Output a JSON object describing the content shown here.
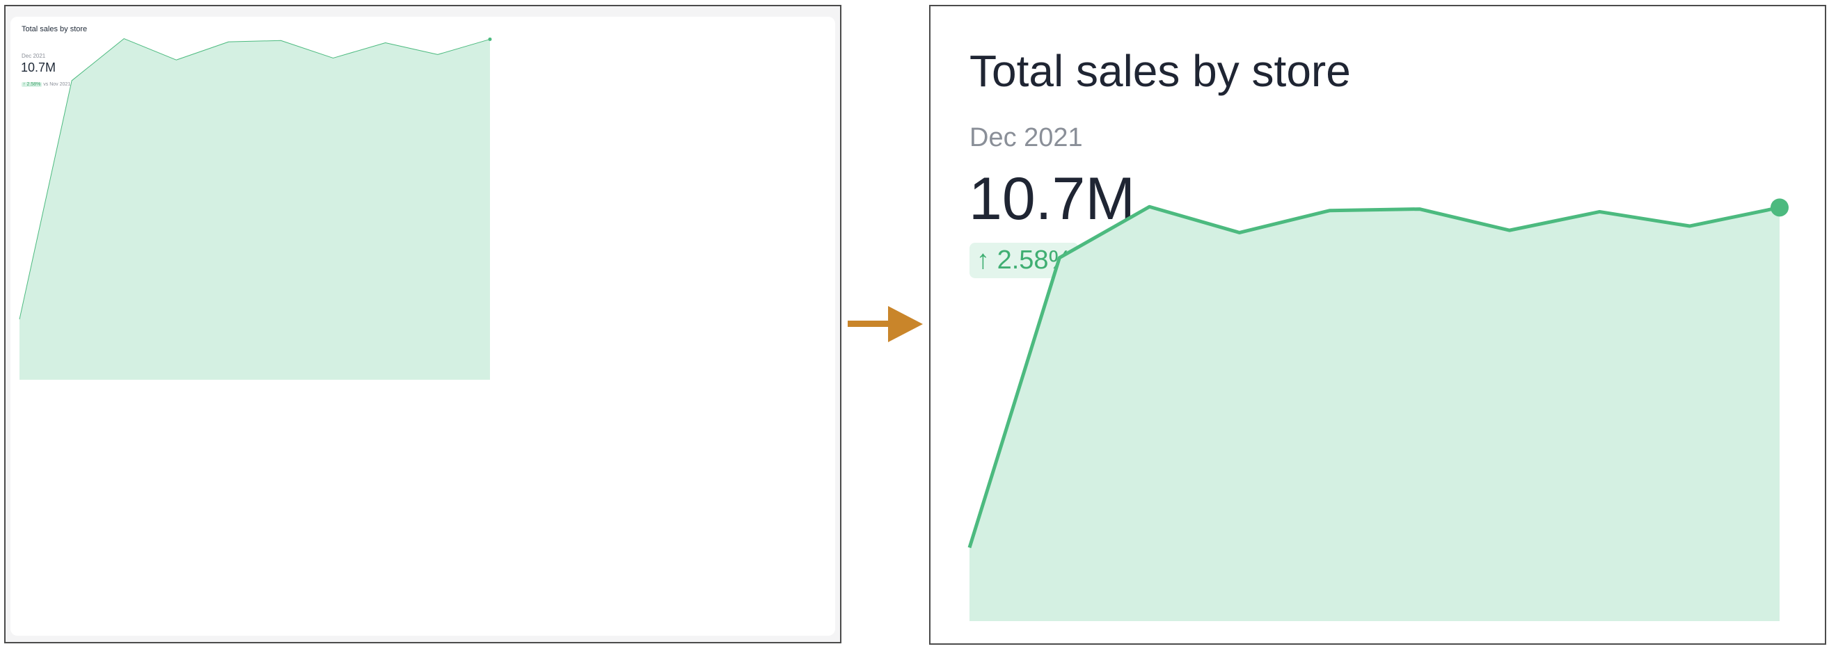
{
  "card": {
    "title": "Total sales by store",
    "period": "Dec 2021",
    "value": "10.7M",
    "change_arrow": "↑",
    "change_pct": "2.58%",
    "comparison": "vs Nov 2021 (10.43M)"
  },
  "colors": {
    "line": "#4cba7f",
    "fill": "#d4f0e2",
    "arrow": "#c9852a",
    "badge_bg": "#e3f5ec",
    "badge_text": "#3fae72"
  },
  "icons": {
    "change": "arrow-up-icon",
    "connector": "arrow-right-icon"
  },
  "chart_data": {
    "type": "area",
    "title": "Total sales by store",
    "xlabel": "",
    "ylabel": "",
    "grid": false,
    "x": [
      1,
      2,
      3,
      4,
      5,
      6,
      7,
      8,
      9,
      10
    ],
    "values": [
      1.9,
      9.4,
      10.72,
      10.05,
      10.62,
      10.66,
      10.11,
      10.59,
      10.22,
      10.7
    ],
    "ylim": [
      0,
      11.3
    ],
    "highlight_last_point": true
  }
}
